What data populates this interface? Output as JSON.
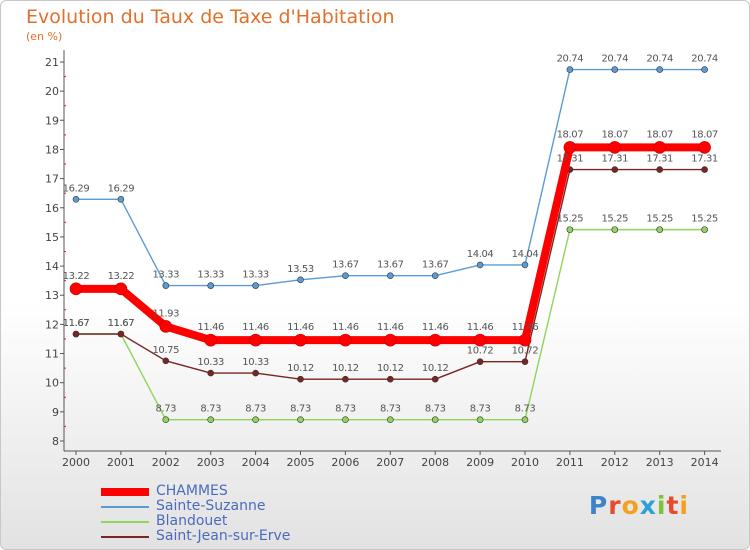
{
  "title": "Evolution du Taux de Taxe d'Habitation",
  "subtitle": "(en %)",
  "logo_text": "Proxiti",
  "chart_data": {
    "type": "line",
    "title": "Evolution du Taux de Taxe d'Habitation",
    "ylabel": "(en %)",
    "ylim": [
      8,
      21
    ],
    "yticks": [
      "8",
      "9",
      "10",
      "11",
      "12",
      "13",
      "14",
      "15",
      "16",
      "17",
      "18",
      "19",
      "20",
      "21"
    ],
    "x": [
      "2000",
      "2001",
      "2002",
      "2003",
      "2004",
      "2005",
      "2006",
      "2007",
      "2008",
      "2009",
      "2010",
      "2011",
      "2012",
      "2013",
      "2014"
    ],
    "grid": false,
    "legend": "bottom-left",
    "series": [
      {
        "name": "CHAMMES",
        "color": "#ff0000",
        "values": [
          13.22,
          13.22,
          11.93,
          11.46,
          11.46,
          11.46,
          11.46,
          11.46,
          11.46,
          11.46,
          11.46,
          18.07,
          18.07,
          18.07,
          18.07
        ],
        "labels": [
          "13.22",
          "13.22",
          "11.93",
          "11.46",
          "11.46",
          "11.46",
          "11.46",
          "11.46",
          "11.46",
          "11.46",
          "11.46",
          "18.07",
          "18.07",
          "18.07",
          "18.07"
        ]
      },
      {
        "name": "Sainte-Suzanne",
        "color": "#5b9bd5",
        "values": [
          16.29,
          16.29,
          13.33,
          13.33,
          13.33,
          13.53,
          13.67,
          13.67,
          13.67,
          14.04,
          14.04,
          20.74,
          20.74,
          20.74,
          20.74
        ],
        "labels": [
          "16.29",
          "16.29",
          "13.33",
          "13.33",
          "13.33",
          "13.53",
          "13.67",
          "13.67",
          "13.67",
          "14.04",
          "14.04",
          "20.74",
          "20.74",
          "20.74",
          "20.74"
        ]
      },
      {
        "name": "Blandouet",
        "color": "#8fd45c",
        "values": [
          11.67,
          11.67,
          8.73,
          8.73,
          8.73,
          8.73,
          8.73,
          8.73,
          8.73,
          8.73,
          8.73,
          15.25,
          15.25,
          15.25,
          15.25
        ],
        "labels": [
          "11.67",
          "11.67",
          "8.73",
          "8.73",
          "8.73",
          "8.73",
          "8.73",
          "8.73",
          "8.73",
          "8.73",
          "8.73",
          "15.25",
          "15.25",
          "15.25",
          "15.25"
        ]
      },
      {
        "name": "Saint-Jean-sur-Erve",
        "color": "#7a2424",
        "values": [
          11.67,
          11.67,
          10.75,
          10.33,
          10.33,
          10.12,
          10.12,
          10.12,
          10.12,
          10.72,
          10.72,
          17.31,
          17.31,
          17.31,
          17.31
        ],
        "labels": [
          "11.67",
          "11.67",
          "10.75",
          "10.33",
          "10.33",
          "10.12",
          "10.12",
          "10.12",
          "10.12",
          "10.72",
          "10.72",
          "17.31",
          "17.31",
          "17.31",
          "17.31"
        ]
      }
    ]
  }
}
